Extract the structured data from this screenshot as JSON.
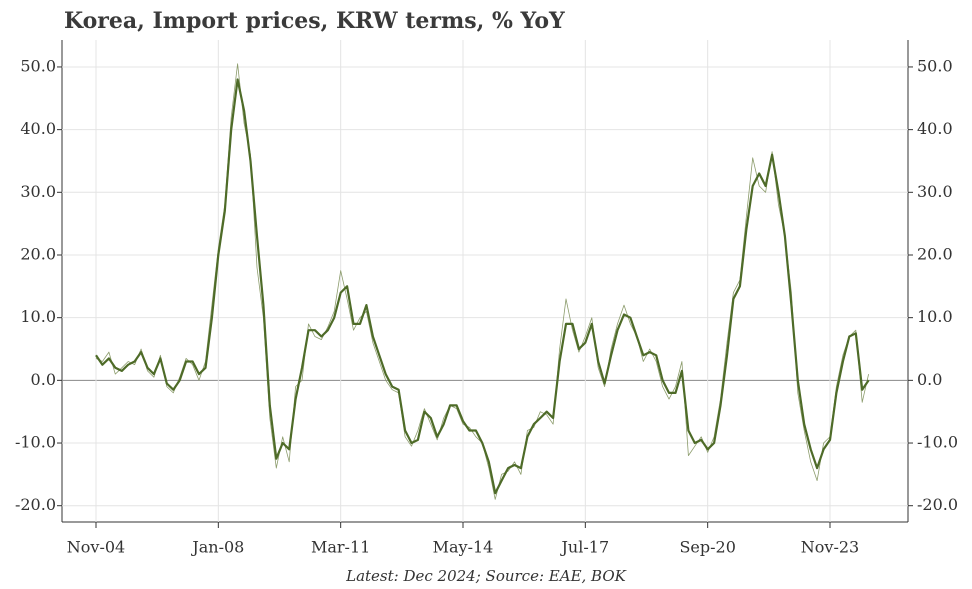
{
  "chart_data": {
    "type": "line",
    "title": "Korea, Import prices, KRW terms, % YoY",
    "source": "Latest: Dec 2024; Source: EAE, BOK",
    "categories": [
      "Nov-04",
      null,
      null,
      null,
      null,
      null,
      null,
      null,
      null,
      null,
      null,
      null,
      null,
      null,
      null,
      null,
      null,
      null,
      null,
      "Jan-08",
      null,
      null,
      null,
      null,
      null,
      null,
      null,
      null,
      null,
      null,
      null,
      null,
      null,
      null,
      null,
      null,
      null,
      null,
      "Mar-11",
      null,
      null,
      null,
      null,
      null,
      null,
      null,
      null,
      null,
      null,
      null,
      null,
      null,
      null,
      null,
      null,
      null,
      null,
      "May-14",
      null,
      null,
      null,
      null,
      null,
      null,
      null,
      null,
      null,
      null,
      null,
      null,
      null,
      null,
      null,
      null,
      null,
      null,
      "Jul-17",
      null,
      null,
      null,
      null,
      null,
      null,
      null,
      null,
      null,
      null,
      null,
      null,
      null,
      null,
      null,
      null,
      null,
      null,
      "Sep-20",
      null,
      null,
      null,
      null,
      null,
      null,
      null,
      null,
      null,
      null,
      null,
      null,
      null,
      null,
      null,
      null,
      null,
      null,
      "Nov-23",
      null,
      null,
      null,
      null,
      null,
      null
    ],
    "series": [
      {
        "color": "#8c9c6c",
        "width": 0.8,
        "values": [
          3.5,
          3,
          4.5,
          1,
          2,
          3,
          2.5,
          5,
          1.5,
          0.5,
          4,
          -1,
          -2,
          0.5,
          3.5,
          2.5,
          0,
          3,
          12,
          21,
          28,
          42,
          50.5,
          41,
          36,
          18,
          10,
          -6,
          -14,
          -9,
          -13,
          -1,
          0,
          9,
          7,
          6.5,
          8.5,
          11,
          17.5,
          13,
          8,
          10,
          11,
          6,
          3,
          0,
          -1.5,
          -2,
          -9,
          -10.5,
          -8,
          -4.5,
          -7,
          -9.5,
          -6,
          -4,
          -4.5,
          -7,
          -7.5,
          -9,
          -10,
          -14,
          -19,
          -15,
          -14.5,
          -13,
          -15,
          -8,
          -7.5,
          -5,
          -5.5,
          -7,
          5,
          13,
          8,
          4.5,
          7,
          10,
          2,
          -1,
          5,
          9,
          12,
          9,
          7,
          3,
          5,
          3,
          -1,
          -3,
          -1,
          3,
          -12,
          -10.5,
          -9,
          -11.5,
          -9,
          -3,
          6,
          14,
          16,
          26,
          35.5,
          31,
          30,
          36.5,
          28,
          23,
          14,
          -2,
          -8,
          -13,
          -16,
          -10,
          -9,
          -1,
          4,
          7,
          8,
          -3.5,
          1
        ]
      },
      {
        "color": "#4e6b28",
        "width": 2.2,
        "values": [
          4,
          2.5,
          3.5,
          2,
          1.5,
          2.5,
          3,
          4.5,
          2,
          1,
          3.5,
          -0.5,
          -1.5,
          0,
          3,
          3,
          1,
          2,
          10,
          20,
          27,
          40,
          48,
          43,
          35,
          23,
          12,
          -4,
          -12.5,
          -10,
          -11,
          -3,
          2,
          8,
          8,
          7,
          8,
          10,
          14,
          15,
          9,
          9,
          12,
          7,
          4,
          1,
          -1,
          -1.5,
          -8,
          -10,
          -9.5,
          -5,
          -6,
          -9,
          -7,
          -4,
          -4,
          -6.5,
          -8,
          -8,
          -10,
          -13,
          -18,
          -16,
          -14,
          -13.5,
          -14,
          -9,
          -7,
          -6,
          -5,
          -6,
          3,
          9,
          9,
          5,
          6,
          9,
          3,
          -0.5,
          4,
          8,
          10.5,
          10,
          7,
          4,
          4.5,
          4,
          0,
          -2,
          -2,
          1.5,
          -8,
          -10,
          -9.5,
          -11,
          -10,
          -4,
          4,
          13,
          15,
          24,
          31,
          33,
          31,
          36,
          30,
          23,
          12,
          0,
          -7,
          -11,
          -14,
          -11,
          -9.5,
          -2,
          3,
          7,
          7.5,
          -1.5,
          0
        ]
      }
    ],
    "ylim": [
      -22.6,
      54.3
    ],
    "yticks": [
      {
        "value": -20,
        "label": "-20.0"
      },
      {
        "value": -10,
        "label": "-10.0"
      },
      {
        "value": 0,
        "label": "0.0"
      },
      {
        "value": 10,
        "label": "10.0"
      },
      {
        "value": 20,
        "label": "20.0"
      },
      {
        "value": 30,
        "label": "30.0"
      },
      {
        "value": 40,
        "label": "40.0"
      },
      {
        "value": 50,
        "label": "50.0"
      }
    ],
    "grid": true
  }
}
